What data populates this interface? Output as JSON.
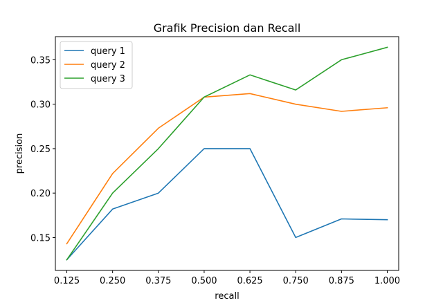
{
  "chart_data": {
    "type": "line",
    "title": "Grafik Precision dan Recall",
    "xlabel": "recall",
    "ylabel": "precision",
    "x": [
      0.125,
      0.25,
      0.375,
      0.5,
      0.625,
      0.75,
      0.875,
      1.0
    ],
    "xticks": [
      "0.125",
      "0.250",
      "0.375",
      "0.500",
      "0.625",
      "0.750",
      "0.875",
      "1.000"
    ],
    "yticks": [
      "0.15",
      "0.20",
      "0.25",
      "0.30",
      "0.35"
    ],
    "ytick_values": [
      0.15,
      0.2,
      0.25,
      0.3,
      0.35
    ],
    "xlim": [
      0.09375,
      1.03125
    ],
    "ylim": [
      0.113,
      0.376
    ],
    "legend_position": "top-left",
    "grid": false,
    "series": [
      {
        "name": "query 1",
        "color": "#1f77b4",
        "values": [
          0.125,
          0.182,
          0.2,
          0.25,
          0.25,
          0.15,
          0.171,
          0.17
        ]
      },
      {
        "name": "query 2",
        "color": "#ff7f0e",
        "values": [
          0.143,
          0.222,
          0.273,
          0.308,
          0.312,
          0.3,
          0.292,
          0.296
        ]
      },
      {
        "name": "query 3",
        "color": "#2ca02c",
        "values": [
          0.125,
          0.2,
          0.25,
          0.308,
          0.333,
          0.316,
          0.35,
          0.364
        ]
      }
    ]
  }
}
